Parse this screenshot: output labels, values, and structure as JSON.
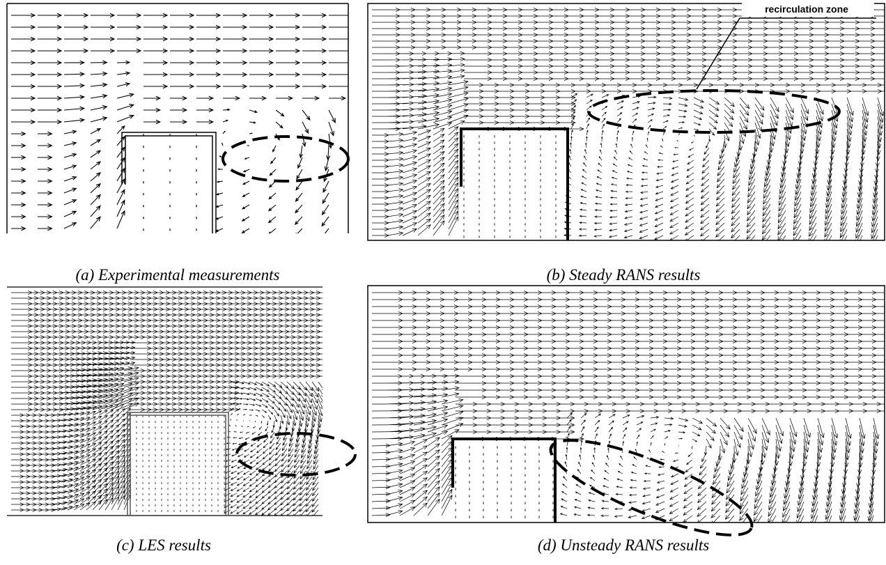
{
  "panels": [
    {
      "caption": "(a) Experimental measurements"
    },
    {
      "caption": "(b) Steady RANS results",
      "annotation": "recirculation zone"
    },
    {
      "caption": "(c) LES results"
    },
    {
      "caption": "(d) Unsteady RANS results"
    }
  ]
}
